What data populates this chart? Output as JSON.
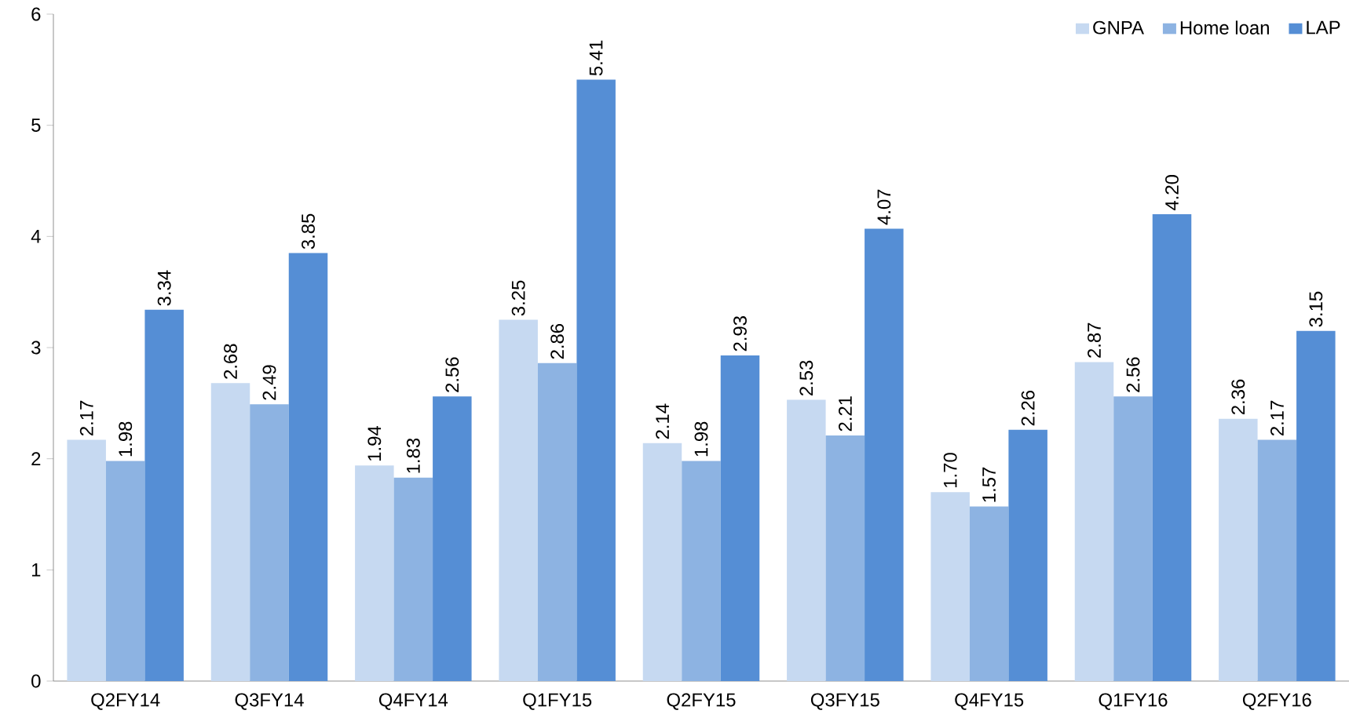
{
  "chart_data": {
    "type": "bar",
    "categories": [
      "Q2FY14",
      "Q3FY14",
      "Q4FY14",
      "Q1FY15",
      "Q2FY15",
      "Q3FY15",
      "Q4FY15",
      "Q1FY16",
      "Q2FY16"
    ],
    "series": [
      {
        "name": "GNPA",
        "color": "#c6d9f1",
        "values": [
          2.17,
          2.68,
          1.94,
          3.25,
          2.14,
          2.53,
          1.7,
          2.87,
          2.36
        ],
        "value_labels": [
          "2.17",
          "2.68",
          "1.94",
          "3.25",
          "2.14",
          "2.53",
          "1.70",
          "2.87",
          "2.36"
        ]
      },
      {
        "name": "Home loan",
        "color": "#8db3e2",
        "values": [
          1.98,
          2.49,
          1.83,
          2.86,
          1.98,
          2.21,
          1.57,
          2.56,
          2.17
        ],
        "value_labels": [
          "1.98",
          "2.49",
          "1.83",
          "2.86",
          "1.98",
          "2.21",
          "1.57",
          "2.56",
          "2.17"
        ]
      },
      {
        "name": "LAP",
        "color": "#558ed5",
        "values": [
          3.34,
          3.85,
          2.56,
          5.41,
          2.93,
          4.07,
          2.26,
          4.2,
          3.15
        ],
        "value_labels": [
          "3.34",
          "3.85",
          "2.56",
          "5.41",
          "2.93",
          "4.07",
          "2.26",
          "4.20",
          "3.15"
        ]
      }
    ],
    "ylim": [
      0,
      6
    ],
    "yticks": [
      0,
      1,
      2,
      3,
      4,
      5,
      6
    ],
    "legend": "top right",
    "grid": false
  }
}
